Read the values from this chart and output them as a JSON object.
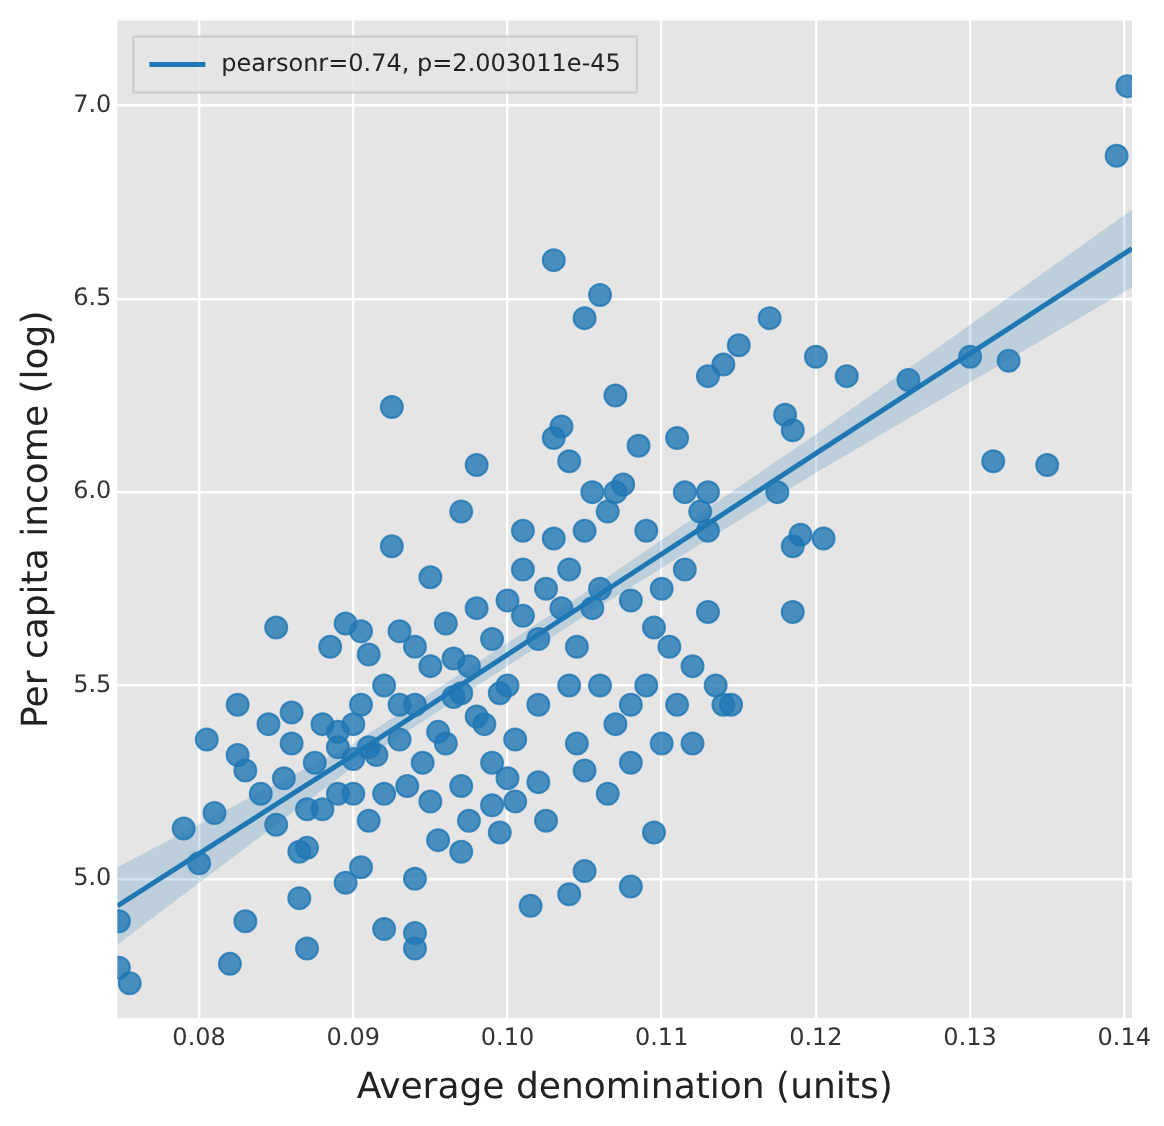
{
  "chart_data": {
    "type": "scatter",
    "xlabel": "Average denomination (units)",
    "ylabel": "Per capita income (log)",
    "xlim": [
      0.0747,
      0.1405
    ],
    "ylim": [
      4.64,
      7.22
    ],
    "xticks": [
      0.08,
      0.09,
      {
        "value": 0.1,
        "label": "0.10"
      },
      0.11,
      0.12,
      0.13,
      0.14
    ],
    "yticks": [
      {
        "value": 5,
        "label": "5.0"
      },
      5.5,
      {
        "value": 6,
        "label": "6.0"
      },
      6.5,
      {
        "value": 7,
        "label": "7.0"
      }
    ],
    "grid": true,
    "legend": "top left",
    "series": [
      {
        "marker": "circle",
        "color": "#1f77b4",
        "x": [
          0.0748,
          0.0748,
          0.0755,
          0.079,
          0.08,
          0.0805,
          0.081,
          0.082,
          0.0825,
          0.0825,
          0.083,
          0.083,
          0.084,
          0.085,
          0.0845,
          0.085,
          0.0855,
          0.086,
          0.086,
          0.0865,
          0.0865,
          0.087,
          0.087,
          0.087,
          0.0875,
          0.088,
          0.088,
          0.0885,
          0.089,
          0.089,
          0.089,
          0.0895,
          0.0895,
          0.09,
          0.09,
          0.09,
          0.0905,
          0.0905,
          0.091,
          0.091,
          0.0905,
          0.0915,
          0.092,
          0.092,
          0.092,
          0.0925,
          0.0925,
          0.093,
          0.093,
          0.0935,
          0.094,
          0.094,
          0.094,
          0.094,
          0.094,
          0.0945,
          0.095,
          0.095,
          0.095,
          0.0955,
          0.096,
          0.096,
          0.0965,
          0.097,
          0.097,
          0.097,
          0.0975,
          0.098,
          0.098,
          0.0985,
          0.099,
          0.099,
          0.099,
          0.0995,
          0.1,
          0.1,
          0.1,
          0.1005,
          0.101,
          0.101,
          0.1015,
          0.102,
          0.102,
          0.102,
          0.1025,
          0.103,
          0.103,
          0.103,
          0.1035,
          0.1035,
          0.104,
          0.104,
          0.104,
          0.104,
          0.1045,
          0.105,
          0.105,
          0.105,
          0.105,
          0.1055,
          0.106,
          0.106,
          0.106,
          0.1065,
          0.107,
          0.107,
          0.107,
          0.1075,
          0.108,
          0.108,
          0.108,
          0.108,
          0.1085,
          0.109,
          0.109,
          0.1095,
          0.11,
          0.11,
          0.111,
          0.111,
          0.1115,
          0.112,
          0.112,
          0.113,
          0.113,
          0.113,
          0.113,
          0.1135,
          0.114,
          0.114,
          0.1145,
          0.115,
          0.117,
          0.1175,
          0.118,
          0.1185,
          0.1185,
          0.1185,
          0.119,
          0.12,
          0.1205,
          0.122,
          0.126,
          0.13,
          0.1315,
          0.1325,
          0.135,
          0.1395,
          0.1402,
          0.0955,
          0.0965,
          0.098,
          0.0995,
          0.101,
          0.1025,
          0.1045,
          0.1055,
          0.1005,
          0.097,
          0.093,
          0.091,
          0.0975,
          0.1065,
          0.1095,
          0.1105,
          0.1125,
          0.1115
        ],
        "values": [
          4.89,
          4.77,
          4.73,
          5.13,
          5.04,
          5.36,
          5.17,
          4.78,
          5.45,
          5.32,
          4.89,
          5.28,
          5.22,
          5.14,
          5.4,
          5.65,
          5.26,
          5.43,
          5.35,
          4.95,
          5.07,
          5.08,
          4.82,
          5.18,
          5.3,
          5.18,
          5.4,
          5.6,
          5.22,
          5.34,
          5.38,
          5.66,
          4.99,
          5.22,
          5.31,
          5.4,
          5.45,
          5.64,
          5.58,
          5.34,
          5.03,
          5.32,
          4.87,
          5.22,
          5.5,
          6.22,
          5.86,
          5.36,
          5.64,
          5.24,
          5.0,
          4.86,
          4.82,
          5.45,
          5.6,
          5.3,
          5.78,
          5.55,
          5.2,
          5.1,
          5.35,
          5.66,
          5.47,
          5.95,
          5.24,
          5.07,
          5.55,
          6.07,
          5.7,
          5.4,
          5.62,
          5.3,
          5.19,
          5.12,
          5.5,
          5.26,
          5.72,
          5.36,
          5.9,
          5.8,
          4.93,
          5.62,
          5.45,
          5.25,
          5.15,
          6.14,
          6.6,
          5.88,
          6.17,
          5.7,
          5.8,
          6.08,
          5.5,
          4.96,
          5.35,
          6.45,
          5.9,
          5.28,
          5.02,
          6.0,
          6.51,
          5.75,
          5.5,
          5.95,
          6.0,
          6.25,
          5.4,
          6.02,
          5.72,
          5.45,
          5.3,
          4.98,
          6.12,
          5.9,
          5.5,
          5.12,
          5.75,
          5.35,
          6.14,
          5.45,
          5.8,
          5.55,
          5.35,
          6.3,
          6.0,
          5.9,
          5.69,
          5.5,
          5.45,
          6.33,
          5.45,
          6.38,
          6.45,
          6.0,
          6.2,
          6.16,
          5.86,
          5.69,
          5.89,
          6.35,
          5.88,
          6.3,
          6.29,
          6.35,
          6.08,
          6.34,
          6.07,
          6.87,
          7.05,
          5.38,
          5.57,
          5.42,
          5.48,
          5.68,
          5.75,
          5.6,
          5.7,
          5.2,
          5.48,
          5.45,
          5.15,
          5.15,
          5.22,
          5.65,
          5.6,
          5.95,
          6.0
        ]
      },
      {
        "type": "line",
        "marker": "none",
        "name": "pearsonr=0.74, p=2.003011e-45",
        "color": "#1f77b4",
        "x": [
          0.0747,
          0.09,
          0.105,
          0.12,
          0.1405
        ],
        "values": [
          4.93,
          5.32,
          5.71,
          6.1,
          6.63
        ],
        "lower": [
          4.83,
          5.29,
          5.68,
          6.05,
          6.53
        ],
        "upper": [
          5.03,
          5.35,
          5.74,
          6.15,
          6.73
        ]
      }
    ]
  }
}
